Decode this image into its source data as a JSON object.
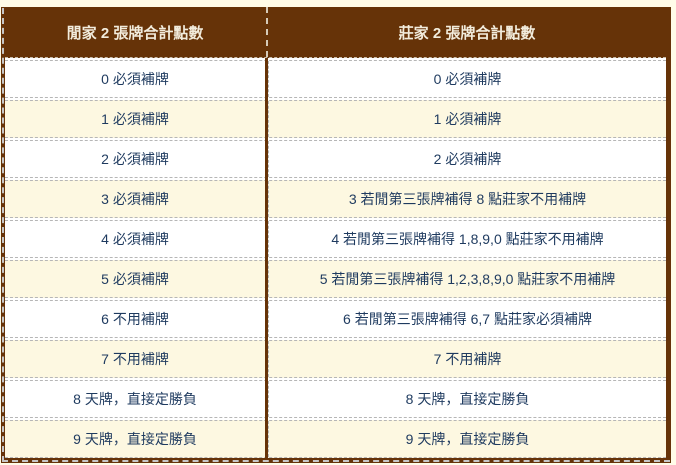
{
  "colors": {
    "page_bg": "#FFFCE8",
    "brown": "#663308",
    "cream_row": "#FDF8E1",
    "white_row": "#FFFFFF",
    "header_text": "#F2ECDC",
    "body_text": "#1E3A5F",
    "dash": "#B6B6B6"
  },
  "table": {
    "columns": [
      {
        "id": "player",
        "label": "閒家 2 張牌合計點數"
      },
      {
        "id": "banker",
        "label": "莊家 2 張牌合計點數"
      }
    ],
    "rows": [
      {
        "player": "0 必須補牌",
        "banker": "0 必須補牌"
      },
      {
        "player": "1 必須補牌",
        "banker": "1 必須補牌"
      },
      {
        "player": "2 必須補牌",
        "banker": "2 必須補牌"
      },
      {
        "player": "3 必須補牌",
        "banker": "3 若閒第三張牌補得 8 點莊家不用補牌"
      },
      {
        "player": "4 必須補牌",
        "banker": "4 若閒第三張牌補得 1,8,9,0 點莊家不用補牌"
      },
      {
        "player": "5 必須補牌",
        "banker": "5 若閒第三張牌補得 1,2,3,8,9,0 點莊家不用補牌"
      },
      {
        "player": "6 不用補牌",
        "banker": "6 若閒第三張牌補得 6,7 點莊家必須補牌"
      },
      {
        "player": "7 不用補牌",
        "banker": "7 不用補牌"
      },
      {
        "player": "8 天牌，直接定勝負",
        "banker": "8 天牌，直接定勝負"
      },
      {
        "player": "9 天牌，直接定勝負",
        "banker": "9 天牌，直接定勝負"
      }
    ]
  }
}
